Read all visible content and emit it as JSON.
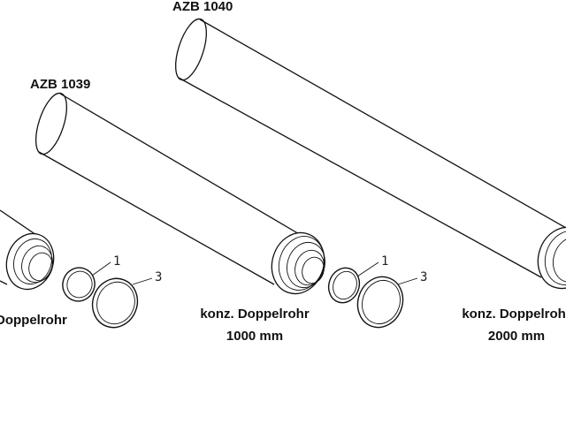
{
  "parts": [
    {
      "id": "left",
      "code": "",
      "description_line1": "Doppelrohr",
      "description_line2": "",
      "callouts": []
    },
    {
      "id": "azb1039",
      "code": "AZB 1039",
      "description_line1": "konz. Doppelrohr",
      "description_line2": "1000 mm",
      "callouts": [
        "1",
        "3"
      ]
    },
    {
      "id": "azb1040",
      "code": "AZB 1040",
      "description_line1": "konz. Doppelrohr",
      "description_line2": "2000 mm",
      "callouts": [
        "1",
        "3"
      ]
    }
  ],
  "left_callouts": [
    "1",
    "3"
  ],
  "colors": {
    "line": "#111111",
    "background": "#ffffff"
  }
}
